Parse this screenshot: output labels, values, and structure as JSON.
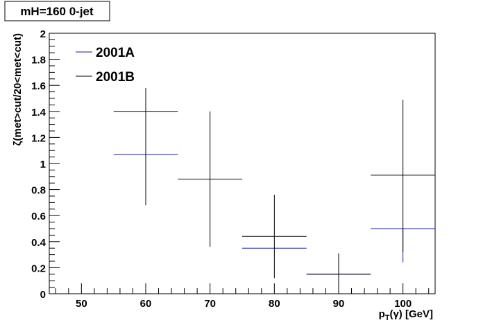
{
  "chart_data": {
    "type": "scatter",
    "title": "mH=160 0-jet",
    "xlabel_parts": {
      "base": "p",
      "sub": "T",
      "mid": "(γ)",
      "tail": " [GeV]"
    },
    "ylabel": "ζ(met>cut/20<met<cut)",
    "xlim": [
      45,
      105
    ],
    "ylim": [
      0,
      2
    ],
    "x_ticks": [
      50,
      60,
      70,
      80,
      90,
      100
    ],
    "y_ticks": [
      0,
      0.2,
      0.4,
      0.6,
      0.8,
      1,
      1.2,
      1.4,
      1.6,
      1.8,
      2
    ],
    "y_tick_labels": [
      "0",
      "0.2",
      "0.4",
      "0.6",
      "0.8",
      "1",
      "1.2",
      "1.4",
      "1.6",
      "1.8",
      "2"
    ],
    "legend_position": "top-left",
    "series": [
      {
        "name": "2001A",
        "color": "#1a1aa8",
        "points": [
          {
            "x": 60,
            "xerr": 5,
            "y": 1.07,
            "ylo": 0.68,
            "yhi": 1.07
          },
          {
            "x": 70,
            "xerr": 5,
            "y": 0.88,
            "ylo": 0.88,
            "yhi": 0.88
          },
          {
            "x": 80,
            "xerr": 5,
            "y": 0.35,
            "ylo": 0.35,
            "yhi": 0.35
          },
          {
            "x": 90,
            "xerr": 5,
            "y": 0.15,
            "ylo": 0.15,
            "yhi": 0.15
          },
          {
            "x": 100,
            "xerr": 5,
            "y": 0.5,
            "ylo": 0.24,
            "yhi": 0.5
          }
        ]
      },
      {
        "name": "2001B",
        "color": "#000000",
        "points": [
          {
            "x": 60,
            "xerr": 5,
            "y": 1.4,
            "ylo": 0.68,
            "yhi": 1.58
          },
          {
            "x": 70,
            "xerr": 5,
            "y": 0.88,
            "ylo": 0.36,
            "yhi": 1.4
          },
          {
            "x": 80,
            "xerr": 5,
            "y": 0.44,
            "ylo": 0.12,
            "yhi": 0.76
          },
          {
            "x": 90,
            "xerr": 5,
            "y": 0.15,
            "ylo": 0,
            "yhi": 0.31
          },
          {
            "x": 100,
            "xerr": 5,
            "y": 0.91,
            "ylo": 0.32,
            "yhi": 1.49
          }
        ]
      }
    ]
  }
}
